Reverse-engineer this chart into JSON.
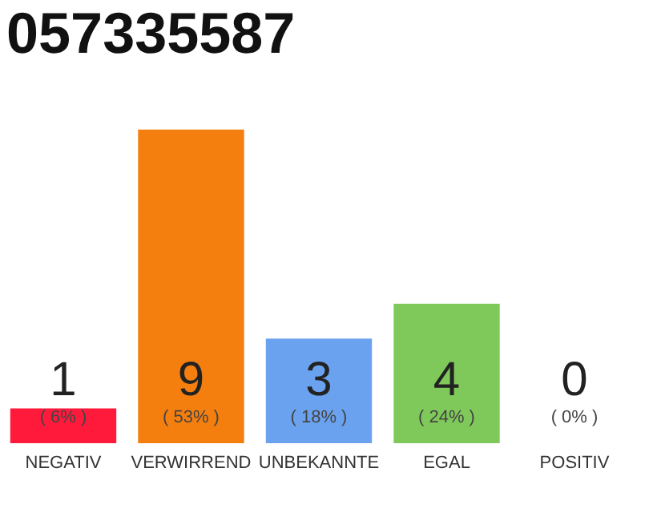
{
  "chart_data": {
    "type": "bar",
    "title": "057335587",
    "categories": [
      "NEGATIV",
      "VERWIRREND",
      "UNBEKANNTE",
      "EGAL",
      "POSITIV"
    ],
    "values": [
      1,
      9,
      3,
      4,
      0
    ],
    "colors": [
      "#ff1a3c",
      "#f57f0e",
      "#6aa2ef",
      "#7fc95a",
      "#bdbdbd"
    ],
    "value_labels": [
      "1",
      "9",
      "3",
      "4",
      "0"
    ],
    "annotations": [
      "( 6% )",
      "( 53% )",
      "( 18% )",
      "( 24% )",
      "( 0% )"
    ],
    "grid": false
  }
}
